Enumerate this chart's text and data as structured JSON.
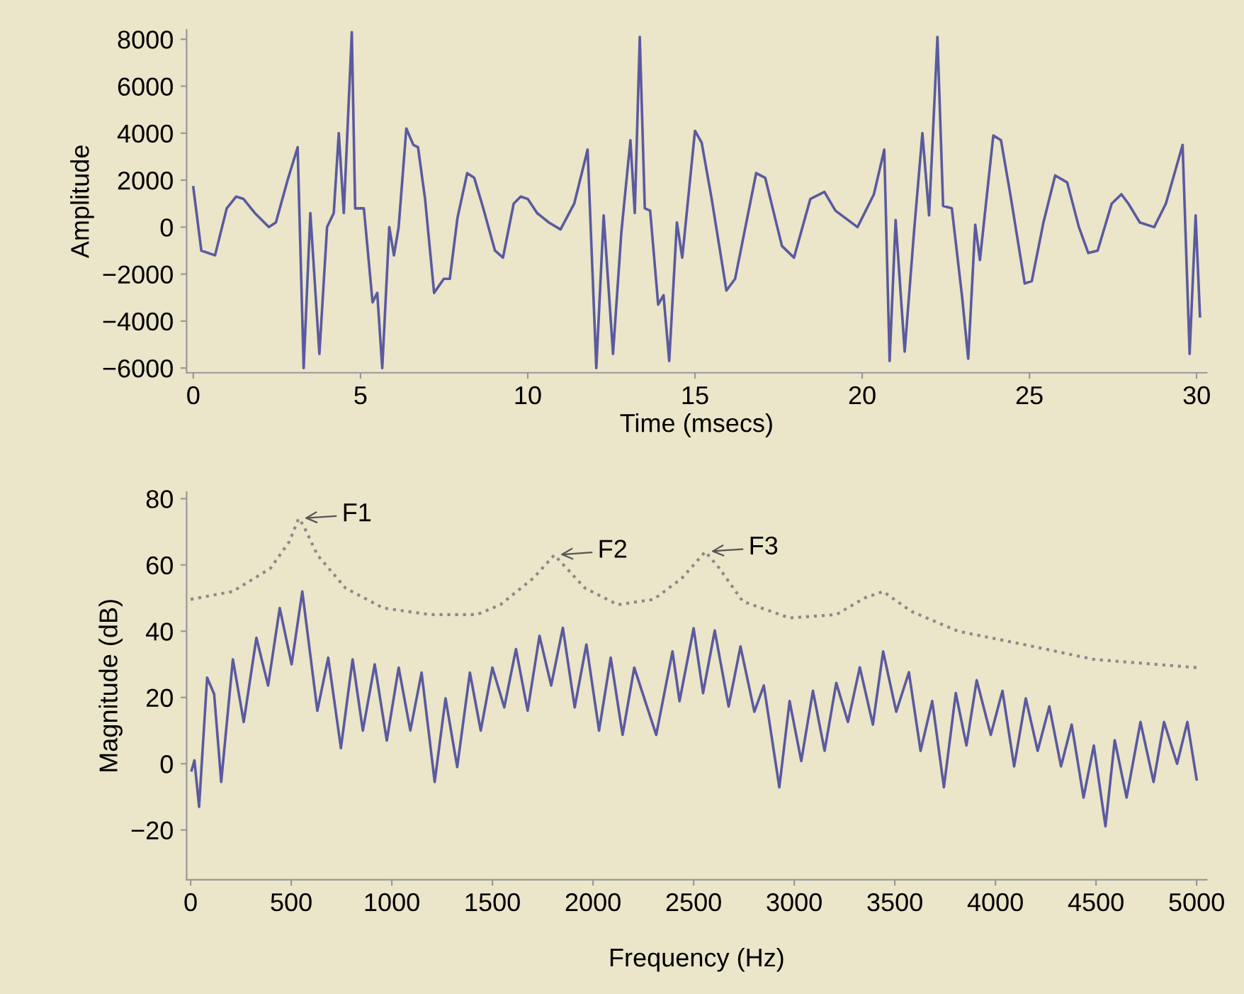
{
  "chart_data": [
    {
      "type": "line",
      "xlabel": "Time (msecs)",
      "ylabel": "Amplitude",
      "xlim": [
        -0.2,
        30.3
      ],
      "ylim": [
        -6200,
        8400
      ],
      "xticks": [
        0,
        5,
        10,
        15,
        20,
        25,
        30
      ],
      "yticks": [
        -6000,
        -4000,
        -2000,
        0,
        2000,
        4000,
        6000,
        8000
      ],
      "grid": false,
      "series": [
        {
          "color": "#5a5aa0",
          "line_style": "solid",
          "x": [
            0,
            0.24,
            0.65,
            1.0,
            1.28,
            1.5,
            1.84,
            2.26,
            2.47,
            2.82,
            3.12,
            3.3,
            3.5,
            3.77,
            4.0,
            4.2,
            4.35,
            4.5,
            4.74,
            4.84,
            5.1,
            5.36,
            5.5,
            5.65,
            5.86,
            6.0,
            6.14,
            6.37,
            6.58,
            6.72,
            6.93,
            7.2,
            7.49,
            7.67,
            7.9,
            8.19,
            8.4,
            8.67,
            9.02,
            9.26,
            9.58,
            9.79,
            10.0,
            10.28,
            10.63,
            10.98,
            11.39,
            11.79,
            12.05,
            12.27,
            12.55,
            12.8,
            13.07,
            13.2,
            13.35,
            13.5,
            13.66,
            13.9,
            14.06,
            14.23,
            14.46,
            14.62,
            15.0,
            15.2,
            15.5,
            15.94,
            16.2,
            16.83,
            17.1,
            17.6,
            17.96,
            18.45,
            18.87,
            19.2,
            19.86,
            20.35,
            20.66,
            20.82,
            21.0,
            21.27,
            21.55,
            21.8,
            22.0,
            22.25,
            22.42,
            22.68,
            22.99,
            23.17,
            23.38,
            23.52,
            23.92,
            24.15,
            24.44,
            24.86,
            25.07,
            25.42,
            25.77,
            26.13,
            26.48,
            26.76,
            27.04,
            27.46,
            27.75,
            27.96,
            28.3,
            28.73,
            29.08,
            29.58,
            29.79,
            29.97,
            30.1
          ],
          "values": [
            1700,
            -1000,
            -1200,
            800,
            1300,
            1200,
            600,
            0,
            200,
            2000,
            3400,
            -6000,
            600,
            -5400,
            0,
            600,
            4000,
            600,
            8300,
            800,
            800,
            -3200,
            -2800,
            -6000,
            0,
            -1200,
            0,
            4200,
            3500,
            3400,
            1200,
            -2800,
            -2200,
            -2200,
            400,
            2300,
            2100,
            800,
            -1000,
            -1300,
            1000,
            1300,
            1200,
            600,
            200,
            -100,
            1000,
            3300,
            -6000,
            500,
            -5400,
            -200,
            3700,
            600,
            8100,
            800,
            700,
            -3300,
            -2900,
            -5700,
            200,
            -1300,
            4100,
            3600,
            1200,
            -2700,
            -2200,
            2300,
            2100,
            -800,
            -1300,
            1200,
            1500,
            700,
            0,
            1400,
            3300,
            -5700,
            300,
            -5300,
            -200,
            4000,
            500,
            8100,
            900,
            800,
            -3000,
            -5600,
            100,
            -1400,
            3900,
            3700,
            1300,
            -2400,
            -2300,
            200,
            2200,
            1900,
            0,
            -1100,
            -1000,
            1000,
            1400,
            1000,
            200,
            0,
            1000,
            3500,
            -5400,
            500,
            -3800
          ]
        }
      ]
    },
    {
      "type": "line",
      "xlabel": "Frequency (Hz)",
      "ylabel": "Magnitude (dB)",
      "xlim": [
        -20,
        5050
      ],
      "ylim": [
        -35,
        82
      ],
      "xticks": [
        0,
        500,
        1000,
        1500,
        2000,
        2500,
        3000,
        3500,
        4000,
        4500,
        5000
      ],
      "yticks": [
        -20,
        0,
        20,
        40,
        60,
        80
      ],
      "grid": false,
      "annotations": [
        {
          "text": "F1",
          "x": 537,
          "y": 74
        },
        {
          "text": "F2",
          "x": 1808,
          "y": 63
        },
        {
          "text": "F3",
          "x": 2558,
          "y": 64
        }
      ],
      "series": [
        {
          "color": "#8a8a8a",
          "line_style": "dotted",
          "x": [
            0,
            210,
            397,
            490,
            537,
            560,
            630,
            770,
            957,
            1190,
            1423,
            1540,
            1703,
            1808,
            1960,
            2123,
            2302,
            2442,
            2558,
            2628,
            2744,
            2977,
            3209,
            3349,
            3442,
            3581,
            3814,
            4140,
            4488,
            5000
          ],
          "values": [
            49.6,
            52,
            59,
            67,
            74,
            72,
            63,
            53,
            47,
            45,
            45,
            48,
            56,
            63,
            53,
            48,
            49.6,
            56,
            64,
            59,
            49,
            44,
            45,
            50,
            52,
            46,
            40,
            36,
            31.5,
            29
          ]
        },
        {
          "color": "#5a5aa0",
          "line_style": "solid",
          "x": [
            5,
            19,
            42,
            82,
            117,
            152,
            210,
            264,
            327,
            385,
            443,
            502,
            555,
            630,
            684,
            747,
            805,
            856,
            915,
            975,
            1034,
            1092,
            1148,
            1213,
            1267,
            1325,
            1388,
            1442,
            1500,
            1559,
            1617,
            1675,
            1734,
            1792,
            1850,
            1909,
            1967,
            2030,
            2088,
            2147,
            2205,
            2314,
            2395,
            2430,
            2500,
            2547,
            2605,
            2674,
            2733,
            2802,
            2849,
            2926,
            2977,
            3035,
            3093,
            3151,
            3209,
            3267,
            3326,
            3391,
            3442,
            3507,
            3570,
            3628,
            3686,
            3744,
            3803,
            3856,
            3907,
            3977,
            4035,
            4093,
            4151,
            4210,
            4268,
            4326,
            4379,
            4438,
            4489,
            4547,
            4593,
            4652,
            4721,
            4786,
            4838,
            4903,
            4954,
            5000
          ],
          "values": [
            -2,
            1,
            -13,
            26,
            21,
            -5.5,
            31.5,
            12.6,
            38,
            23.6,
            47,
            30,
            52,
            16,
            32,
            4.7,
            31.5,
            10,
            30,
            7,
            29,
            10,
            27.5,
            -5.5,
            19.7,
            -1,
            27.5,
            10,
            29,
            17,
            34.6,
            16,
            38.6,
            23.6,
            41,
            17,
            36,
            10,
            32,
            8.7,
            29,
            8.7,
            33.9,
            18.9,
            40.9,
            21.3,
            40.2,
            17.3,
            35.4,
            15.7,
            23.6,
            -7.1,
            18.9,
            0.8,
            22,
            3.9,
            24.4,
            12.6,
            29.1,
            11.8,
            33.9,
            15.7,
            27.6,
            3.9,
            18.9,
            -7.1,
            21.3,
            5.5,
            25.2,
            8.7,
            22,
            -0.8,
            19.7,
            3.9,
            17.3,
            -0.8,
            11.8,
            -10.2,
            5.5,
            -18.9,
            7.1,
            -10.2,
            12.6,
            -5.5,
            12.6,
            0,
            12.6,
            -4.7
          ]
        }
      ]
    }
  ]
}
